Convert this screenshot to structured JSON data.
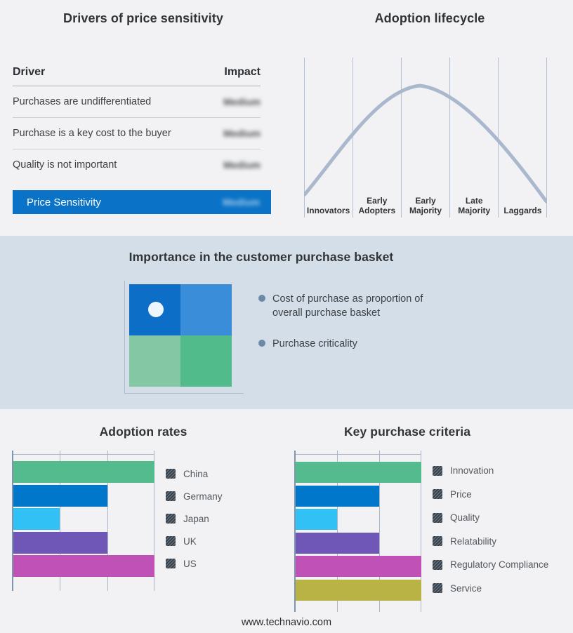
{
  "sections": {
    "drivers": {
      "title": "Drivers of price sensitivity",
      "table": {
        "headers": {
          "driver": "Driver",
          "impact": "Impact"
        },
        "rows": [
          {
            "driver": "Purchases are undifferentiated",
            "impact": "Medium",
            "impact_redacted": true
          },
          {
            "driver": "Purchase is a key cost to the buyer",
            "impact": "Medium",
            "impact_redacted": true
          },
          {
            "driver": "Quality is not important",
            "impact": "Medium",
            "impact_redacted": true
          }
        ],
        "highlight_row": {
          "driver": "Price Sensitivity",
          "impact": "Medium",
          "impact_redacted": true
        }
      }
    },
    "basket": {
      "title": "Importance in the customer purchase basket",
      "bullets": [
        "Cost of purchase as proportion of overall purchase basket",
        "Purchase criticality"
      ],
      "quadrant_colors": {
        "top_left": "#0d6ec7",
        "top_right": "#3a8ed9",
        "bottom_left": "#83c7a5",
        "bottom_right": "#51bb8b"
      },
      "marker": "white dot in top-left quadrant"
    }
  },
  "chart_data": [
    {
      "id": "adoption_lifecycle",
      "type": "line",
      "title": "Adoption lifecycle",
      "x_categories": [
        "Innovators",
        "Early Adopters",
        "Early Majority",
        "Late Majority",
        "Laggards"
      ],
      "shape": "bell curve rising from Innovators, peaking within Early Majority, falling through Laggards",
      "curve_color": "#a9b8cd",
      "grid": "vertical stage dividers only, no y-axis labels"
    },
    {
      "id": "adoption_rates",
      "type": "bar",
      "orientation": "horizontal",
      "title": "Adoption rates",
      "categories": [
        "China",
        "Germany",
        "Japan",
        "UK",
        "US"
      ],
      "values": [
        3,
        2,
        1,
        2,
        3
      ],
      "xlim": [
        0,
        3
      ],
      "grid": "vertical gridlines at thirds, unlabeled axis",
      "colors": [
        "#53bb8e",
        "#0077cb",
        "#31c1f5",
        "#6f57b8",
        "#c051b7"
      ],
      "legend_position": "right",
      "legend_swatch_style": "dark hatched square"
    },
    {
      "id": "key_purchase_criteria",
      "type": "bar",
      "orientation": "horizontal",
      "title": "Key purchase criteria",
      "categories": [
        "Innovation",
        "Price",
        "Quality",
        "Relatability",
        "Regulatory Compliance",
        "Service"
      ],
      "values": [
        3,
        2,
        1,
        2,
        3,
        3
      ],
      "xlim": [
        0,
        3
      ],
      "grid": "vertical gridlines at thirds, unlabeled axis",
      "colors": [
        "#53bb8e",
        "#0077cb",
        "#31c1f5",
        "#6f57b8",
        "#c051b7",
        "#b9b244"
      ],
      "legend_position": "right",
      "legend_swatch_style": "dark hatched square"
    }
  ],
  "colors": {
    "page_bg": "#f2f2f4",
    "band_bg": "#d4dee9",
    "highlight_blue": "#0a73c7",
    "axis_line": "#7d96ae",
    "gridline": "#a9b6c9"
  },
  "footer": {
    "url": "www.technavio.com"
  }
}
